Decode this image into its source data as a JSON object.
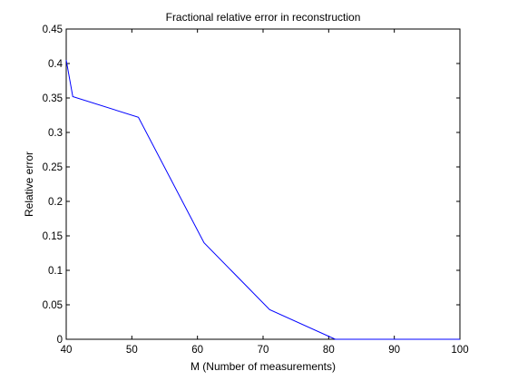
{
  "chart_data": {
    "type": "line",
    "title": "Fractional relative error in reconstruction",
    "xlabel": "M (Number of measurements)",
    "ylabel": "Relative error",
    "xlim": [
      40,
      100
    ],
    "ylim": [
      0,
      0.45
    ],
    "x_ticks": [
      "40",
      "50",
      "60",
      "70",
      "80",
      "90",
      "100"
    ],
    "y_ticks": [
      "0",
      "0.05",
      "0.1",
      "0.15",
      "0.2",
      "0.25",
      "0.3",
      "0.35",
      "0.4",
      "0.45"
    ],
    "grid": false,
    "series": [
      {
        "color": "#0000ff",
        "x": [
          40,
          41,
          51,
          61,
          71,
          81,
          91,
          100
        ],
        "y": [
          0.405,
          0.352,
          0.322,
          0.14,
          0.043,
          0.0,
          0.0,
          0.0
        ]
      }
    ]
  }
}
